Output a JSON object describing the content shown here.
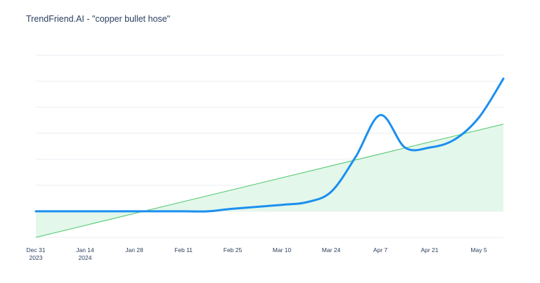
{
  "chart_data": {
    "type": "line",
    "title": "TrendFriend.AI - \"copper bullet hose\"",
    "xlabel": "",
    "ylabel": "",
    "x_ticks": [
      {
        "date": "2023-12-31",
        "label": "Dec 31",
        "sublabel": "2023"
      },
      {
        "date": "2024-01-14",
        "label": "Jan 14",
        "sublabel": "2024"
      },
      {
        "date": "2024-01-28",
        "label": "Jan 28",
        "sublabel": ""
      },
      {
        "date": "2024-02-11",
        "label": "Feb 11",
        "sublabel": ""
      },
      {
        "date": "2024-02-25",
        "label": "Feb 25",
        "sublabel": ""
      },
      {
        "date": "2024-03-10",
        "label": "Mar 10",
        "sublabel": ""
      },
      {
        "date": "2024-03-24",
        "label": "Mar 24",
        "sublabel": ""
      },
      {
        "date": "2024-04-07",
        "label": "Apr 7",
        "sublabel": ""
      },
      {
        "date": "2024-04-21",
        "label": "Apr 21",
        "sublabel": ""
      },
      {
        "date": "2024-05-05",
        "label": "May 5",
        "sublabel": ""
      }
    ],
    "x_range": [
      "2023-12-31",
      "2024-05-12"
    ],
    "y_range": [
      -1,
      6.5
    ],
    "y_tick_labels_shown": false,
    "grid": {
      "horizontal": true,
      "vertical": false
    },
    "legend": "none",
    "series": [
      {
        "kind": "line",
        "color": "#1b8fef",
        "x": [
          "2023-12-31",
          "2024-01-14",
          "2024-01-28",
          "2024-02-11",
          "2024-02-18",
          "2024-02-25",
          "2024-03-10",
          "2024-03-17",
          "2024-03-24",
          "2024-03-31",
          "2024-04-07",
          "2024-04-14",
          "2024-04-21",
          "2024-04-28",
          "2024-05-05",
          "2024-05-12"
        ],
        "y": [
          0,
          0,
          0,
          0,
          0,
          0.1,
          0.25,
          0.35,
          0.75,
          2.1,
          3.7,
          2.45,
          2.45,
          2.75,
          3.6,
          5.1
        ]
      },
      {
        "kind": "trend",
        "color": "#4cc76a",
        "fill": "#e3f7ea",
        "x": [
          "2023-12-31",
          "2024-05-12"
        ],
        "y": [
          -1,
          3.35
        ]
      }
    ]
  }
}
